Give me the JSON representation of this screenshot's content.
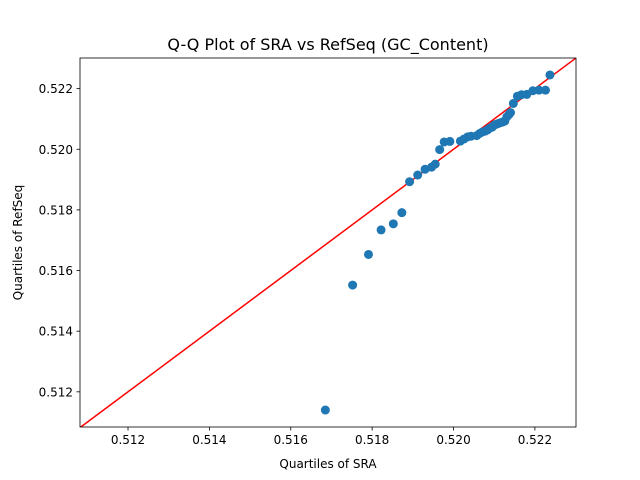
{
  "chart_data": {
    "type": "scatter",
    "title": "Q-Q Plot of SRA vs RefSeq (GC_Content)",
    "xlabel": "Quartiles of SRA",
    "ylabel": "Quartiles of RefSeq",
    "xlim": [
      0.51082,
      0.52301
    ],
    "ylim": [
      0.51084,
      0.52301
    ],
    "xticks": [
      "0.512",
      "0.514",
      "0.516",
      "0.518",
      "0.520",
      "0.522"
    ],
    "yticks": [
      "0.512",
      "0.514",
      "0.516",
      "0.518",
      "0.520",
      "0.522"
    ],
    "grid": false,
    "colors": {
      "points": "#1f77b4",
      "reference_line": "#ff0000"
    },
    "reference_line": {
      "type": "y=x",
      "color": "#ff0000"
    },
    "points": [
      [
        0.51685,
        0.5114
      ],
      [
        0.51752,
        0.51552
      ],
      [
        0.51791,
        0.51653
      ],
      [
        0.51822,
        0.51734
      ],
      [
        0.51852,
        0.51754
      ],
      [
        0.51873,
        0.51791
      ],
      [
        0.51892,
        0.51893
      ],
      [
        0.51912,
        0.51915
      ],
      [
        0.5193,
        0.51934
      ],
      [
        0.51946,
        0.51941
      ],
      [
        0.51955,
        0.51951
      ],
      [
        0.51966,
        0.51999
      ],
      [
        0.51977,
        0.52024
      ],
      [
        0.51991,
        0.52026
      ],
      [
        0.52017,
        0.52027
      ],
      [
        0.52026,
        0.52034
      ],
      [
        0.52035,
        0.52041
      ],
      [
        0.52043,
        0.52043
      ],
      [
        0.52057,
        0.52045
      ],
      [
        0.52064,
        0.52052
      ],
      [
        0.52071,
        0.52057
      ],
      [
        0.52078,
        0.5206
      ],
      [
        0.52084,
        0.52064
      ],
      [
        0.52089,
        0.5207
      ],
      [
        0.52095,
        0.52073
      ],
      [
        0.521,
        0.5208
      ],
      [
        0.52104,
        0.52082
      ],
      [
        0.5211,
        0.52085
      ],
      [
        0.52116,
        0.52088
      ],
      [
        0.52121,
        0.5209
      ],
      [
        0.52126,
        0.52093
      ],
      [
        0.52131,
        0.52107
      ],
      [
        0.52136,
        0.52114
      ],
      [
        0.5214,
        0.52121
      ],
      [
        0.52147,
        0.52151
      ],
      [
        0.52157,
        0.52175
      ],
      [
        0.52167,
        0.5218
      ],
      [
        0.5218,
        0.52181
      ],
      [
        0.52195,
        0.52193
      ],
      [
        0.5221,
        0.52195
      ],
      [
        0.52226,
        0.52195
      ],
      [
        0.52237,
        0.52245
      ]
    ]
  }
}
